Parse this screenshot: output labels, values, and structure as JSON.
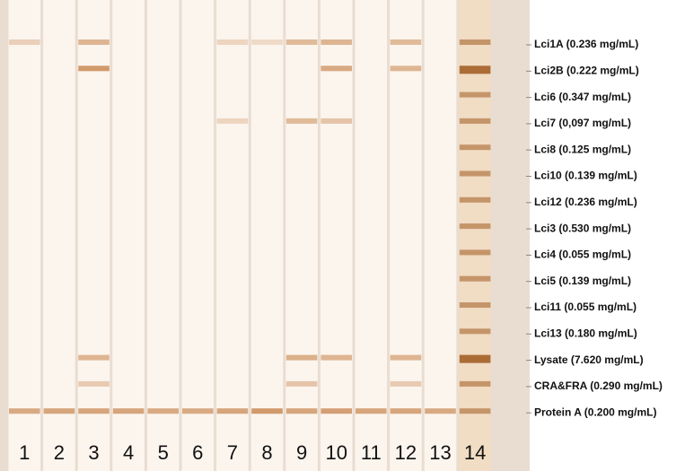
{
  "lanes": [
    "1",
    "2",
    "3",
    "4",
    "5",
    "6",
    "7",
    "8",
    "9",
    "10",
    "11",
    "12",
    "13",
    "14"
  ],
  "band_labels": [
    "Lci1A (0.236 mg/mL)",
    "Lci2B (0.222 mg/mL)",
    "Lci6 (0.347 mg/mL)",
    "Lci7 (0,097 mg/mL)",
    "Lci8 (0.125 mg/mL)",
    "Lci10 (0.139 mg/mL)",
    "Lci12 (0.236 mg/mL)",
    "Lci3 (0.530 mg/mL)",
    "Lci4 (0.055 mg/mL)",
    "Lci5 (0.139 mg/mL)",
    "Lci11 (0.055 mg/mL)",
    "Lci13 (0.180 mg/mL)",
    "Lysate (7.620 mg/mL)",
    "CRA&FRA (0.290 mg/mL)",
    "Protein A (0.200 mg/mL)"
  ]
}
